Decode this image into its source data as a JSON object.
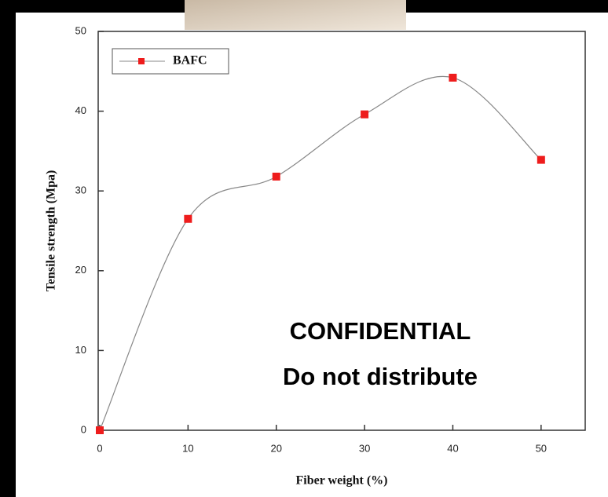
{
  "chart_data": {
    "type": "line",
    "x_label": "Fiber weight (%)",
    "y_label": "Tensile strength (Mpa)",
    "x": [
      0,
      10,
      20,
      30,
      40,
      50
    ],
    "series": [
      {
        "name": "BAFC",
        "color": "#ee1c1c",
        "values": [
          0,
          26.5,
          31.8,
          39.6,
          44.2,
          33.9
        ]
      }
    ],
    "xlim": [
      0,
      55
    ],
    "xticks": [
      0,
      10,
      20,
      30,
      40,
      50
    ],
    "ylim": [
      0,
      50
    ],
    "yticks": [
      0,
      10,
      20,
      30,
      40,
      50
    ],
    "legend": "top-left",
    "annotations": [
      "CONFIDENTIAL",
      "Do not distribute"
    ]
  }
}
